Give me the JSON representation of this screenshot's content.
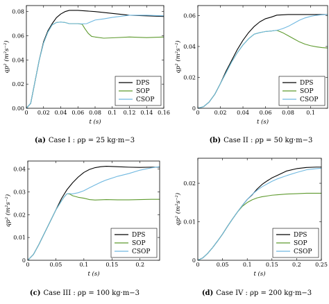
{
  "chart_data": [
    {
      "type": "line",
      "caption_label": "(a)",
      "caption_text": "Case I : ρp = 25 kg·m−3",
      "xlabel": "t (s)",
      "ylabel": "qp² (m²s⁻²)",
      "xlim": [
        0,
        0.16
      ],
      "ylim": [
        0,
        0.085
      ],
      "xticks": [
        "0",
        "0.02",
        "0.04",
        "0.06",
        "0.08",
        "0.1",
        "0.12",
        "0.14",
        "0.16"
      ],
      "yticks": [
        "0.00",
        "0.02",
        "0.04",
        "0.06",
        "0.08"
      ],
      "legend_position": "bottom-right",
      "series": [
        {
          "name": "DPS",
          "color": "#000000",
          "x": [
            0,
            0.005,
            0.01,
            0.015,
            0.02,
            0.025,
            0.03,
            0.035,
            0.04,
            0.045,
            0.05,
            0.06,
            0.07,
            0.08,
            0.1,
            0.12,
            0.14,
            0.16
          ],
          "y": [
            0,
            0.004,
            0.022,
            0.04,
            0.055,
            0.064,
            0.07,
            0.075,
            0.078,
            0.08,
            0.081,
            0.081,
            0.0805,
            0.08,
            0.0785,
            0.077,
            0.0765,
            0.076
          ]
        },
        {
          "name": "SOP",
          "color": "#5e9a2e",
          "x": [
            0,
            0.005,
            0.01,
            0.015,
            0.02,
            0.025,
            0.03,
            0.035,
            0.04,
            0.045,
            0.05,
            0.055,
            0.06,
            0.065,
            0.068,
            0.072,
            0.076,
            0.08,
            0.09,
            0.1,
            0.12,
            0.14,
            0.16
          ],
          "y": [
            0,
            0.004,
            0.022,
            0.04,
            0.054,
            0.063,
            0.069,
            0.071,
            0.0713,
            0.071,
            0.07,
            0.07,
            0.07,
            0.0695,
            0.066,
            0.062,
            0.0595,
            0.059,
            0.058,
            0.0583,
            0.059,
            0.0585,
            0.059
          ]
        },
        {
          "name": "CSOP",
          "color": "#6fb8e0",
          "x": [
            0,
            0.005,
            0.01,
            0.015,
            0.02,
            0.025,
            0.03,
            0.035,
            0.04,
            0.045,
            0.05,
            0.055,
            0.06,
            0.065,
            0.07,
            0.08,
            0.09,
            0.1,
            0.12,
            0.14,
            0.16
          ],
          "y": [
            0,
            0.004,
            0.022,
            0.04,
            0.054,
            0.063,
            0.069,
            0.071,
            0.0713,
            0.071,
            0.07,
            0.07,
            0.07,
            0.0698,
            0.07,
            0.073,
            0.074,
            0.0752,
            0.077,
            0.077,
            0.0765
          ]
        }
      ]
    },
    {
      "type": "line",
      "caption_label": "(b)",
      "caption_text": "Case II : ρp = 50 kg·m−3",
      "xlabel": "t (s)",
      "ylabel": "qp² (m²s⁻²)",
      "xlim": [
        0,
        0.115
      ],
      "ylim": [
        0,
        0.0665
      ],
      "xticks": [
        "0",
        "0.02",
        "0.04",
        "0.06",
        "0.08",
        "0.1"
      ],
      "yticks": [
        "0",
        "0.02",
        "0.04",
        "0.06"
      ],
      "legend_position": "bottom-right",
      "series": [
        {
          "name": "DPS",
          "color": "#000000",
          "x": [
            0,
            0.005,
            0.01,
            0.015,
            0.02,
            0.025,
            0.03,
            0.035,
            0.04,
            0.045,
            0.05,
            0.055,
            0.06,
            0.065,
            0.07,
            0.08,
            0.09,
            0.1,
            0.115
          ],
          "y": [
            0,
            0.001,
            0.004,
            0.009,
            0.016,
            0.024,
            0.031,
            0.038,
            0.044,
            0.049,
            0.053,
            0.056,
            0.058,
            0.059,
            0.0603,
            0.0607,
            0.0607,
            0.0607,
            0.0607
          ]
        },
        {
          "name": "SOP",
          "color": "#5e9a2e",
          "x": [
            0,
            0.005,
            0.01,
            0.015,
            0.02,
            0.025,
            0.03,
            0.035,
            0.04,
            0.045,
            0.05,
            0.055,
            0.06,
            0.065,
            0.07,
            0.075,
            0.08,
            0.085,
            0.09,
            0.095,
            0.1,
            0.105,
            0.11,
            0.115
          ],
          "y": [
            0,
            0.001,
            0.004,
            0.009,
            0.016,
            0.023,
            0.03,
            0.036,
            0.041,
            0.045,
            0.048,
            0.049,
            0.0497,
            0.05,
            0.0505,
            0.049,
            0.047,
            0.045,
            0.043,
            0.0415,
            0.0405,
            0.0398,
            0.0393,
            0.039
          ]
        },
        {
          "name": "CSOP",
          "color": "#6fb8e0",
          "x": [
            0,
            0.005,
            0.01,
            0.015,
            0.02,
            0.025,
            0.03,
            0.035,
            0.04,
            0.045,
            0.05,
            0.055,
            0.06,
            0.065,
            0.07,
            0.075,
            0.08,
            0.085,
            0.09,
            0.095,
            0.1,
            0.105,
            0.11,
            0.115
          ],
          "y": [
            0,
            0.001,
            0.004,
            0.009,
            0.016,
            0.023,
            0.03,
            0.036,
            0.041,
            0.045,
            0.048,
            0.049,
            0.0497,
            0.05,
            0.0505,
            0.0515,
            0.053,
            0.055,
            0.057,
            0.0585,
            0.0595,
            0.0602,
            0.0605,
            0.0607
          ]
        }
      ]
    },
    {
      "type": "line",
      "caption_label": "(c)",
      "caption_text": "Case III : ρp = 100 kg·m−3",
      "xlabel": "t (s)",
      "ylabel": "qp² (m²s⁻²)",
      "xlim": [
        0,
        0.235
      ],
      "ylim": [
        0,
        0.0435
      ],
      "xticks": [
        "0",
        "0.05",
        "0.1",
        "0.15",
        "0.2"
      ],
      "yticks": [
        "0",
        "0.01",
        "0.02",
        "0.03",
        "0.04"
      ],
      "legend_position": "bottom-right",
      "series": [
        {
          "name": "DPS",
          "color": "#000000",
          "x": [
            0,
            0.01,
            0.02,
            0.03,
            0.04,
            0.05,
            0.06,
            0.07,
            0.08,
            0.09,
            0.1,
            0.11,
            0.12,
            0.13,
            0.14,
            0.16,
            0.18,
            0.2,
            0.22,
            0.235
          ],
          "y": [
            0,
            0.0025,
            0.007,
            0.012,
            0.017,
            0.022,
            0.027,
            0.031,
            0.034,
            0.0365,
            0.0385,
            0.0398,
            0.0406,
            0.041,
            0.0412,
            0.041,
            0.0408,
            0.0407,
            0.0408,
            0.0408
          ]
        },
        {
          "name": "SOP",
          "color": "#5e9a2e",
          "x": [
            0,
            0.01,
            0.02,
            0.03,
            0.04,
            0.05,
            0.06,
            0.065,
            0.07,
            0.075,
            0.08,
            0.09,
            0.1,
            0.11,
            0.12,
            0.14,
            0.16,
            0.18,
            0.2,
            0.22,
            0.235
          ],
          "y": [
            0,
            0.0025,
            0.007,
            0.012,
            0.017,
            0.022,
            0.026,
            0.0278,
            0.0292,
            0.029,
            0.0283,
            0.0276,
            0.0272,
            0.0266,
            0.0264,
            0.0266,
            0.0265,
            0.0265,
            0.0266,
            0.0267,
            0.0267
          ]
        },
        {
          "name": "CSOP",
          "color": "#6fb8e0",
          "x": [
            0,
            0.01,
            0.02,
            0.03,
            0.04,
            0.05,
            0.06,
            0.065,
            0.07,
            0.075,
            0.08,
            0.09,
            0.1,
            0.11,
            0.12,
            0.13,
            0.14,
            0.16,
            0.18,
            0.2,
            0.22,
            0.235
          ],
          "y": [
            0,
            0.0025,
            0.007,
            0.012,
            0.017,
            0.022,
            0.026,
            0.0278,
            0.0292,
            0.0292,
            0.0291,
            0.0296,
            0.0305,
            0.0318,
            0.033,
            0.0342,
            0.0352,
            0.0368,
            0.038,
            0.0395,
            0.0405,
            0.041
          ]
        }
      ]
    },
    {
      "type": "line",
      "caption_label": "(d)",
      "caption_text": "Case IV : ρp = 200 kg·m−3",
      "xlabel": "t (s)",
      "ylabel": "qp² (m²s⁻²)",
      "xlim": [
        0,
        0.25
      ],
      "ylim": [
        0,
        0.0265
      ],
      "xticks": [
        "0",
        "0.05",
        "0.1",
        "0.15",
        "0.2",
        "0.25"
      ],
      "yticks": [
        "0",
        "0.01",
        "0.02"
      ],
      "legend_position": "bottom-right",
      "series": [
        {
          "name": "DPS",
          "color": "#000000",
          "x": [
            0,
            0.01,
            0.02,
            0.03,
            0.04,
            0.05,
            0.06,
            0.07,
            0.08,
            0.09,
            0.1,
            0.11,
            0.12,
            0.13,
            0.14,
            0.15,
            0.16,
            0.18,
            0.2,
            0.22,
            0.24,
            0.25
          ],
          "y": [
            0,
            0.0006,
            0.0018,
            0.0033,
            0.005,
            0.0068,
            0.0088,
            0.0107,
            0.0125,
            0.0142,
            0.0158,
            0.017,
            0.0185,
            0.0197,
            0.0206,
            0.0214,
            0.022,
            0.0232,
            0.0238,
            0.0241,
            0.0242,
            0.0242
          ]
        },
        {
          "name": "SOP",
          "color": "#5e9a2e",
          "x": [
            0,
            0.01,
            0.02,
            0.03,
            0.04,
            0.05,
            0.06,
            0.07,
            0.08,
            0.09,
            0.1,
            0.11,
            0.12,
            0.13,
            0.14,
            0.15,
            0.16,
            0.18,
            0.2,
            0.22,
            0.24,
            0.25
          ],
          "y": [
            0,
            0.0006,
            0.0018,
            0.0033,
            0.005,
            0.0068,
            0.0088,
            0.0107,
            0.0125,
            0.014,
            0.015,
            0.0157,
            0.0162,
            0.0165,
            0.0167,
            0.0169,
            0.017,
            0.0172,
            0.0173,
            0.0174,
            0.0174,
            0.0174
          ]
        },
        {
          "name": "CSOP",
          "color": "#6fb8e0",
          "x": [
            0,
            0.01,
            0.02,
            0.03,
            0.04,
            0.05,
            0.06,
            0.07,
            0.08,
            0.09,
            0.1,
            0.11,
            0.12,
            0.13,
            0.14,
            0.15,
            0.16,
            0.18,
            0.2,
            0.22,
            0.24,
            0.25
          ],
          "y": [
            0,
            0.0006,
            0.0018,
            0.0033,
            0.005,
            0.0068,
            0.0088,
            0.0107,
            0.0125,
            0.0142,
            0.0158,
            0.0171,
            0.0182,
            0.0191,
            0.0198,
            0.0205,
            0.0211,
            0.022,
            0.0228,
            0.0235,
            0.0238,
            0.0239
          ]
        }
      ]
    }
  ]
}
